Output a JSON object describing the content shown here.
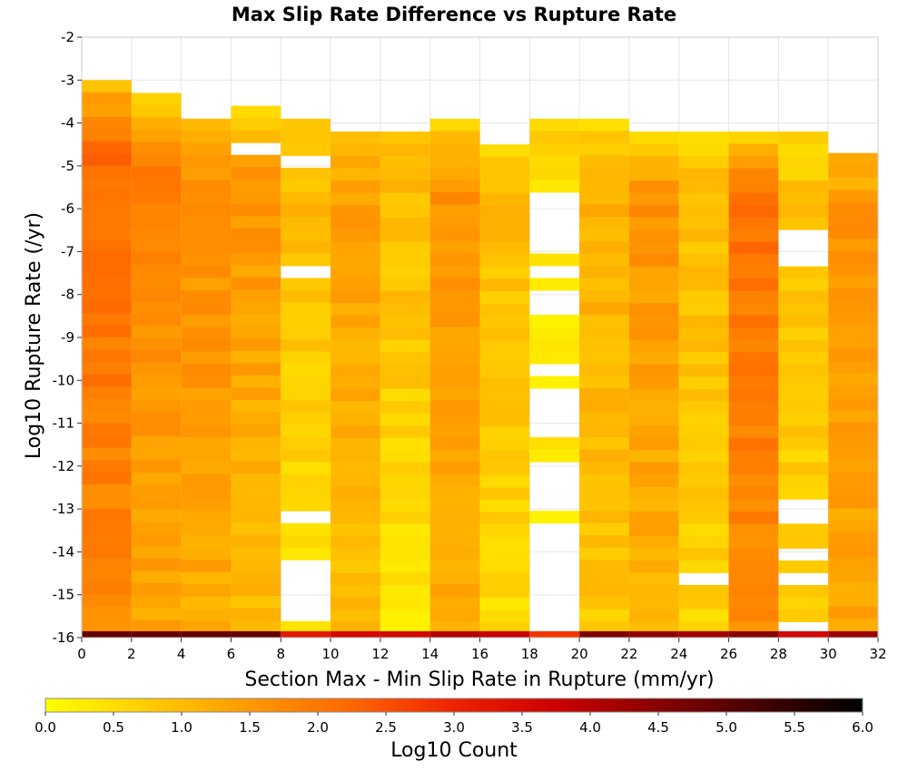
{
  "chart_data": {
    "type": "heatmap",
    "title": "Max Slip Rate Difference vs Rupture Rate",
    "xlabel": "Section Max - Min Slip Rate in Rupture (mm/yr)",
    "ylabel": "Log10 Rupture Rate (/yr)",
    "xlim": [
      0,
      32
    ],
    "ylim": [
      -16,
      -2
    ],
    "x_ticks": [
      "0",
      "2",
      "4",
      "6",
      "8",
      "10",
      "12",
      "14",
      "16",
      "18",
      "20",
      "22",
      "24",
      "26",
      "28",
      "30",
      "32"
    ],
    "y_ticks": [
      "-2",
      "-3",
      "-4",
      "-5",
      "-6",
      "-7",
      "-8",
      "-9",
      "-10",
      "-11",
      "-12",
      "-13",
      "-14",
      "-15",
      "-16"
    ],
    "x_bin_width": 2,
    "y_bin_height": 0.2857,
    "grid": true,
    "colorbar": {
      "label": "Log10 Count",
      "min": 0.0,
      "max": 6.0,
      "ticks": [
        "0.0",
        "0.5",
        "1.0",
        "1.5",
        "2.0",
        "2.5",
        "3.0",
        "3.5",
        "4.0",
        "4.5",
        "5.0",
        "5.5",
        "6.0"
      ],
      "colors": [
        "#ffff00",
        "#ffcc00",
        "#ff9900",
        "#ff6600",
        "#ee2200",
        "#cc0000",
        "#880000",
        "#440000",
        "#000000"
      ]
    },
    "columns": [
      {
        "x": [
          0,
          2
        ],
        "top": -3.0,
        "z_top": 1.0,
        "z_mid": 2.2,
        "z_bottom": 1.7,
        "empty_bands": [],
        "bottom_row": 4.9
      },
      {
        "x": [
          2,
          4
        ],
        "top": -3.3,
        "z_top": 0.6,
        "z_mid": 1.9,
        "z_bottom": 1.3,
        "empty_bands": [],
        "bottom_row": 4.9
      },
      {
        "x": [
          4,
          6
        ],
        "top": -3.9,
        "z_top": 0.8,
        "z_mid": 1.7,
        "z_bottom": 1.2,
        "empty_bands": [],
        "bottom_row": 4.9
      },
      {
        "x": [
          6,
          8
        ],
        "top": -3.6,
        "z_top": 0.3,
        "z_mid": 1.6,
        "z_bottom": 0.9,
        "empty_bands": [
          [
            -4.6,
            -4.4
          ]
        ],
        "bottom_row": 4.9
      },
      {
        "x": [
          8,
          10
        ],
        "top": -3.9,
        "z_top": 0.6,
        "z_mid": 1.0,
        "z_bottom": 0.4,
        "empty_bands": [
          [
            -4.9,
            -4.7
          ],
          [
            -7.5,
            -7.3
          ],
          [
            -12.3,
            -12.1
          ],
          [
            -13.3,
            -13.1
          ],
          [
            -15.6,
            -14.3
          ]
        ],
        "bottom_row": 3.2
      },
      {
        "x": [
          10,
          12
        ],
        "top": -4.2,
        "z_top": 0.9,
        "z_mid": 1.4,
        "z_bottom": 0.9,
        "empty_bands": [],
        "bottom_row": 3.6
      },
      {
        "x": [
          12,
          14
        ],
        "top": -4.2,
        "z_top": 0.8,
        "z_mid": 1.0,
        "z_bottom": 0.4,
        "empty_bands": [
          [
            -14.3,
            -14.1
          ]
        ],
        "bottom_row": 3.6
      },
      {
        "x": [
          14,
          16
        ],
        "top": -3.9,
        "z_top": 0.5,
        "z_mid": 1.6,
        "z_bottom": 1.2,
        "empty_bands": [],
        "bottom_row": 4.0
      },
      {
        "x": [
          16,
          18
        ],
        "top": -4.5,
        "z_top": 0.6,
        "z_mid": 1.0,
        "z_bottom": 0.5,
        "empty_bands": [],
        "bottom_row": 3.8
      },
      {
        "x": [
          18,
          20
        ],
        "top": -3.9,
        "z_top": 0.7,
        "z_mid": 0.4,
        "z_bottom": 0.3,
        "empty_bands": [
          [
            -7.0,
            -5.6
          ],
          [
            -7.6,
            -7.3
          ],
          [
            -8.6,
            -7.9
          ],
          [
            -9.9,
            -9.6
          ],
          [
            -11.3,
            -10.2
          ],
          [
            -13.0,
            -11.9
          ],
          [
            -16.0,
            -13.3
          ]
        ],
        "bottom_row": 2.8
      },
      {
        "x": [
          20,
          22
        ],
        "top": -3.9,
        "z_top": 0.6,
        "z_mid": 1.2,
        "z_bottom": 0.8,
        "empty_bands": [],
        "bottom_row": 4.6
      },
      {
        "x": [
          22,
          24
        ],
        "top": -4.2,
        "z_top": 0.3,
        "z_mid": 1.6,
        "z_bottom": 1.1,
        "empty_bands": [],
        "bottom_row": 4.4
      },
      {
        "x": [
          24,
          26
        ],
        "top": -4.2,
        "z_top": 0.5,
        "z_mid": 1.0,
        "z_bottom": 0.6,
        "empty_bands": [
          [
            -14.9,
            -14.6
          ]
        ],
        "bottom_row": 4.2
      },
      {
        "x": [
          26,
          28
        ],
        "top": -4.2,
        "z_top": 0.5,
        "z_mid": 2.1,
        "z_bottom": 1.7,
        "empty_bands": [],
        "bottom_row": 4.5
      },
      {
        "x": [
          28,
          30
        ],
        "top": -4.2,
        "z_top": 0.6,
        "z_mid": 0.9,
        "z_bottom": 0.6,
        "empty_bands": [
          [
            -7.3,
            -6.5
          ],
          [
            -13.3,
            -12.8
          ],
          [
            -14.2,
            -13.9
          ],
          [
            -14.9,
            -14.6
          ],
          [
            -15.9,
            -15.6
          ]
        ],
        "bottom_row": 3.6
      },
      {
        "x": [
          30,
          32
        ],
        "top": -4.7,
        "z_top": 1.0,
        "z_mid": 1.6,
        "z_bottom": 1.3,
        "empty_bands": [],
        "bottom_row": 4.3
      }
    ]
  }
}
